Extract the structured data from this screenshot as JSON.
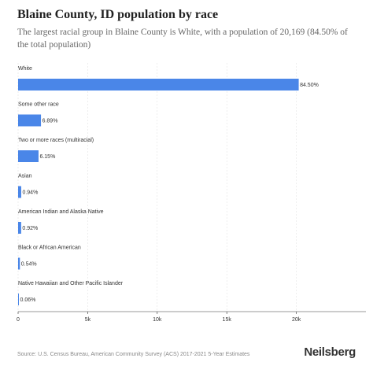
{
  "header": {
    "title": "Blaine County, ID population by race",
    "subtitle": "The largest racial group in Blaine County is White, with a population of 20,169 (84.50% of the total population)"
  },
  "footer": {
    "source": "Source: U.S. Census Bureau, American Community Survey (ACS) 2017-2021 5-Year Estimates",
    "brand": "Neilsberg"
  },
  "colors": {
    "bar": "#4a86e8",
    "axis": "#333333",
    "grid": "#dddddd",
    "label": "#333333"
  },
  "chart_data": {
    "type": "bar",
    "orientation": "horizontal",
    "categories": [
      "White",
      "Some other race",
      "Two or more races (multiracial)",
      "Asian",
      "American Indian and Alaska Native",
      "Black or African American",
      "Native Hawaiian and Other Pacific Islander"
    ],
    "values": [
      20169,
      1645,
      1468,
      224,
      220,
      129,
      14
    ],
    "data_labels": [
      "84.50%",
      "6.89%",
      "6.15%",
      "0.94%",
      "0.92%",
      "0.54%",
      "0.06%"
    ],
    "xlim": [
      0,
      25000
    ],
    "xticks": [
      0,
      5000,
      10000,
      15000,
      20000
    ],
    "xtick_labels": [
      "0",
      "5k",
      "10k",
      "15k",
      "20k"
    ],
    "grid": true,
    "legend": "none"
  }
}
